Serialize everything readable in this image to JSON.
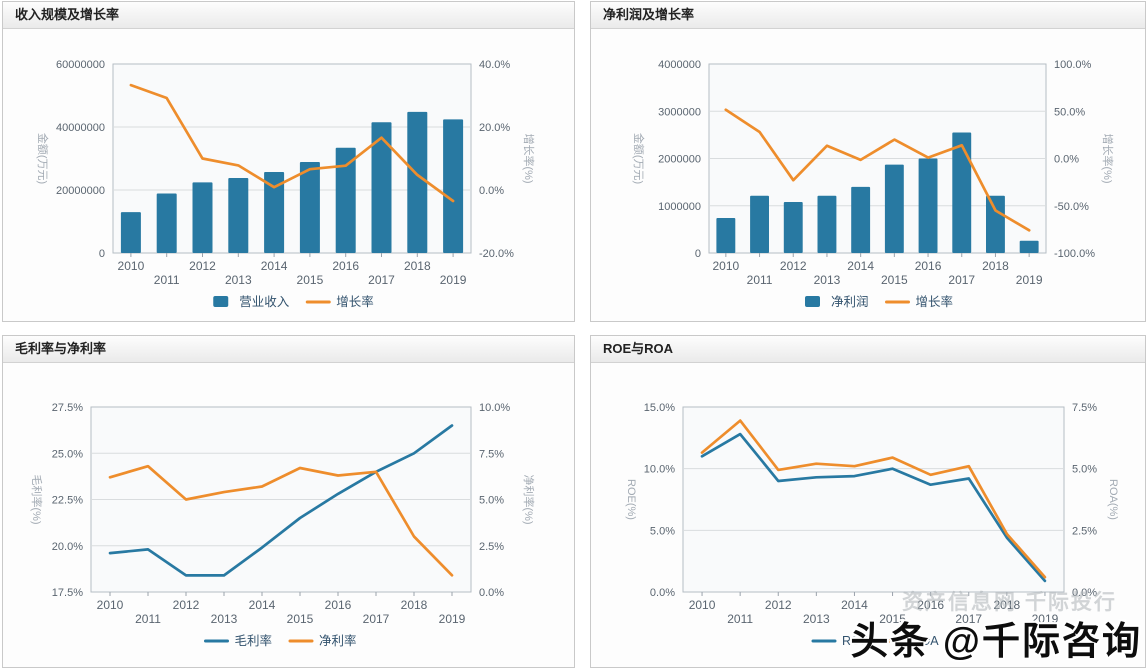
{
  "watermarks": {
    "site": "资产信息网 千际投行",
    "brand": "头条 @千际咨询"
  },
  "colors": {
    "bar_blue": "#2879a2",
    "line_orange": "#ee8d2c",
    "line_blue": "#2879a2",
    "grid": "#d9dcde",
    "plot_border": "#b5bdc4",
    "tick_text": "#5a6570",
    "axis_title_text": "#a3abb4",
    "legend_text": "#33536e"
  },
  "chart_data": [
    {
      "type": "bar",
      "title": "收入规模及增长率",
      "categories": [
        "2010",
        "2011",
        "2012",
        "2013",
        "2014",
        "2015",
        "2016",
        "2017",
        "2018",
        "2019"
      ],
      "left_axis": {
        "label": "金额(万元)",
        "min": 0,
        "max": 60000000,
        "ticks": [
          {
            "value": 0,
            "label": "0"
          },
          {
            "value": 20000000,
            "label": "20000000"
          },
          {
            "value": 40000000,
            "label": "40000000"
          },
          {
            "value": 60000000,
            "label": "60000000"
          }
        ]
      },
      "right_axis": {
        "label": "增长率(%)",
        "min": -20,
        "max": 40,
        "ticks": [
          {
            "value": -20,
            "label": "-20.0%"
          },
          {
            "value": 0,
            "label": "0.0%"
          },
          {
            "value": 20,
            "label": "20.0%"
          },
          {
            "value": 40,
            "label": "40.0%"
          }
        ]
      },
      "series": [
        {
          "name": "营业收入",
          "type": "bar",
          "axis": "left",
          "color": "#2879a2",
          "values": [
            13000000,
            18900000,
            22400000,
            23800000,
            25700000,
            28900000,
            33400000,
            41500000,
            44800000,
            42400000
          ]
        },
        {
          "name": "增长率",
          "type": "line",
          "axis": "right",
          "color": "#ee8d2c",
          "values": [
            33.3,
            29.2,
            10.0,
            7.8,
            0.9,
            6.6,
            7.7,
            16.6,
            4.8,
            -3.5
          ]
        }
      ],
      "layout": {
        "ml": 110,
        "mr": 103,
        "mt": 35,
        "mb": 69,
        "ltx": 36,
        "rtdx": 54
      },
      "legend_position": "bottom-center",
      "grid": true
    },
    {
      "type": "bar",
      "title": "净利润及增长率",
      "categories": [
        "2010",
        "2011",
        "2012",
        "2013",
        "2014",
        "2015",
        "2016",
        "2017",
        "2018",
        "2019"
      ],
      "left_axis": {
        "label": "金额(万元)",
        "min": 0,
        "max": 4000000,
        "ticks": [
          {
            "value": 0,
            "label": "0"
          },
          {
            "value": 1000000,
            "label": "1000000"
          },
          {
            "value": 2000000,
            "label": "2000000"
          },
          {
            "value": 3000000,
            "label": "3000000"
          },
          {
            "value": 4000000,
            "label": "4000000"
          }
        ]
      },
      "right_axis": {
        "label": "增长率(%)",
        "min": -100,
        "max": 100,
        "ticks": [
          {
            "value": -100,
            "label": "-100.0%"
          },
          {
            "value": -50,
            "label": "-50.0%"
          },
          {
            "value": 0,
            "label": "0.0%"
          },
          {
            "value": 50,
            "label": "50.0%"
          },
          {
            "value": 100,
            "label": "100.0%"
          }
        ]
      },
      "series": [
        {
          "name": "净利润",
          "type": "bar",
          "axis": "left",
          "color": "#2879a2",
          "values": [
            740000,
            1210000,
            1080000,
            1210000,
            1400000,
            1870000,
            2000000,
            2550000,
            1210000,
            260000
          ]
        },
        {
          "name": "增长率",
          "type": "line",
          "axis": "right",
          "color": "#ee8d2c",
          "values": [
            51.5,
            28.0,
            -23.0,
            13.5,
            -1.5,
            20.0,
            1.0,
            14.0,
            -55.0,
            -76.0
          ]
        }
      ],
      "layout": {
        "ml": 118,
        "mr": 99,
        "mt": 35,
        "mb": 69,
        "ltx": 44,
        "rtdx": 58
      },
      "legend_position": "bottom-center",
      "grid": true
    },
    {
      "type": "line",
      "title": "毛利率与净利率",
      "categories": [
        "2010",
        "2011",
        "2012",
        "2013",
        "2014",
        "2015",
        "2016",
        "2017",
        "2018",
        "2019"
      ],
      "left_axis": {
        "label": "毛利率(%)",
        "min": 17.5,
        "max": 27.5,
        "ticks": [
          {
            "value": 17.5,
            "label": "17.5%"
          },
          {
            "value": 20,
            "label": "20.0%"
          },
          {
            "value": 22.5,
            "label": "22.5%"
          },
          {
            "value": 25,
            "label": "25.0%"
          },
          {
            "value": 27.5,
            "label": "27.5%"
          }
        ]
      },
      "right_axis": {
        "label": "净利率(%)",
        "min": 0,
        "max": 10,
        "ticks": [
          {
            "value": 0,
            "label": "0.0%"
          },
          {
            "value": 2.5,
            "label": "2.5%"
          },
          {
            "value": 5,
            "label": "5.0%"
          },
          {
            "value": 7.5,
            "label": "7.5%"
          },
          {
            "value": 10,
            "label": "10.0%"
          }
        ]
      },
      "series": [
        {
          "name": "毛利率",
          "type": "line",
          "axis": "left",
          "color": "#2879a2",
          "values": [
            19.6,
            19.8,
            18.4,
            18.4,
            19.9,
            21.5,
            22.8,
            24.0,
            25.0,
            26.5
          ]
        },
        {
          "name": "净利率",
          "type": "line",
          "axis": "right",
          "color": "#ee8d2c",
          "values": [
            6.2,
            6.8,
            5.0,
            5.4,
            5.7,
            6.7,
            6.3,
            6.5,
            3.0,
            0.9
          ]
        }
      ],
      "layout": {
        "ml": 88,
        "mr": 103,
        "mt": 44,
        "mb": 75,
        "ltx": 30,
        "rtdx": 54
      },
      "legend_position": "bottom-center",
      "grid": true
    },
    {
      "type": "line",
      "title": "ROE与ROA",
      "categories": [
        "2010",
        "2011",
        "2012",
        "2013",
        "2014",
        "2015",
        "2016",
        "2017",
        "2018",
        "2019"
      ],
      "left_axis": {
        "label": "ROE(%)",
        "min": 0,
        "max": 15,
        "ticks": [
          {
            "value": 0,
            "label": "0.0%"
          },
          {
            "value": 5,
            "label": "5.0%"
          },
          {
            "value": 10,
            "label": "10.0%"
          },
          {
            "value": 15,
            "label": "15.0%"
          }
        ]
      },
      "right_axis": {
        "label": "ROA(%)",
        "min": 0,
        "max": 7.5,
        "ticks": [
          {
            "value": 0,
            "label": "0.0%"
          },
          {
            "value": 2.5,
            "label": "2.5%"
          },
          {
            "value": 5,
            "label": "5.0%"
          },
          {
            "value": 7.5,
            "label": "7.5%"
          }
        ]
      },
      "series": [
        {
          "name": "ROE",
          "type": "line",
          "axis": "left",
          "color": "#2879a2",
          "values": [
            11.0,
            12.8,
            9.0,
            9.3,
            9.4,
            10.0,
            8.7,
            9.2,
            4.4,
            0.9
          ]
        },
        {
          "name": "ROA",
          "type": "line",
          "axis": "right",
          "color": "#ee8d2c",
          "values": [
            5.65,
            6.95,
            4.95,
            5.2,
            5.1,
            5.45,
            4.75,
            5.1,
            2.35,
            0.6
          ]
        }
      ],
      "layout": {
        "ml": 92,
        "mr": 81,
        "mt": 44,
        "mb": 75,
        "ltx": 37,
        "rtdx": 46
      },
      "legend_position": "bottom-center",
      "grid": true
    }
  ]
}
